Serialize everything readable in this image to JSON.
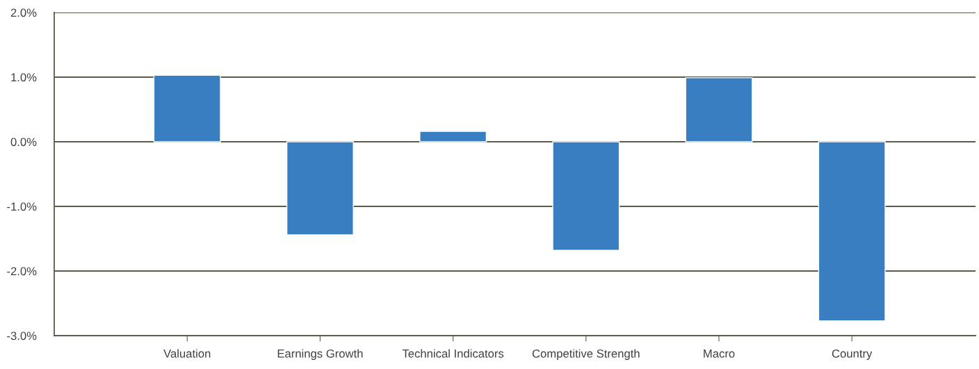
{
  "chart_data": {
    "type": "bar",
    "categories": [
      "Valuation",
      "Earnings Growth",
      "Technical Indicators",
      "Competitive Strength",
      "Macro",
      "Country"
    ],
    "values": [
      1.03,
      -1.44,
      0.16,
      -1.68,
      0.99,
      -2.77
    ],
    "color": "#3a7ec2",
    "ylim": [
      -3,
      2
    ],
    "yticks": [
      {
        "value": -3,
        "label": "-3.0%"
      },
      {
        "value": -2,
        "label": "-2.0%"
      },
      {
        "value": -1,
        "label": "-1.0%"
      },
      {
        "value": 0,
        "label": "0.0%"
      },
      {
        "value": 1,
        "label": "1.0%"
      },
      {
        "value": 2,
        "label": "2.0%"
      }
    ],
    "grid": "y",
    "legend": false
  }
}
